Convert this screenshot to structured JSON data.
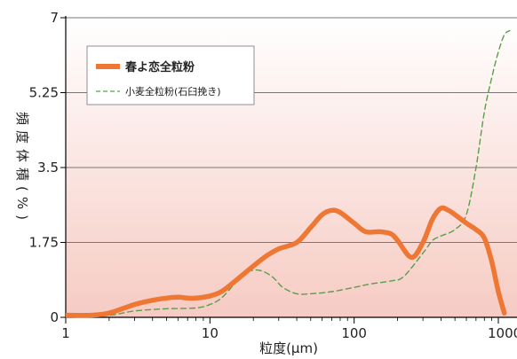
{
  "chart_data": {
    "type": "line",
    "ylabel": "頻度体積(%)",
    "xlabel": "粒度(μm)",
    "x_scale": "log",
    "xlim": [
      1,
      1000
    ],
    "ylim": [
      0,
      7
    ],
    "x_ticks": [
      "1",
      "10",
      "100",
      "1000"
    ],
    "y_ticks": [
      "0",
      "1.75",
      "3.5",
      "5.25",
      "7"
    ],
    "grid": "horizontal",
    "legend_position": "top-left",
    "series": [
      {
        "name": "春よ恋全粒粉",
        "style": "solid",
        "color": "#ee7733",
        "points": [
          [
            1,
            0.05
          ],
          [
            1.5,
            0.05
          ],
          [
            2,
            0.1
          ],
          [
            3,
            0.3
          ],
          [
            4,
            0.4
          ],
          [
            5,
            0.45
          ],
          [
            6,
            0.47
          ],
          [
            7,
            0.45
          ],
          [
            8,
            0.45
          ],
          [
            10,
            0.5
          ],
          [
            12,
            0.6
          ],
          [
            15,
            0.85
          ],
          [
            20,
            1.2
          ],
          [
            25,
            1.45
          ],
          [
            30,
            1.6
          ],
          [
            40,
            1.75
          ],
          [
            50,
            2.1
          ],
          [
            60,
            2.4
          ],
          [
            70,
            2.5
          ],
          [
            80,
            2.45
          ],
          [
            100,
            2.2
          ],
          [
            120,
            2.0
          ],
          [
            150,
            2.0
          ],
          [
            180,
            1.95
          ],
          [
            200,
            1.8
          ],
          [
            250,
            1.4
          ],
          [
            300,
            1.75
          ],
          [
            350,
            2.3
          ],
          [
            400,
            2.55
          ],
          [
            450,
            2.5
          ],
          [
            500,
            2.4
          ],
          [
            600,
            2.2
          ],
          [
            700,
            2.05
          ],
          [
            800,
            1.85
          ],
          [
            900,
            1.3
          ],
          [
            1000,
            0.6
          ],
          [
            1100,
            0.1
          ]
        ]
      },
      {
        "name": "小麦全粒粉(石臼挽き)",
        "style": "dashed",
        "color": "#5a9e4a",
        "points": [
          [
            1,
            0.02
          ],
          [
            2,
            0.05
          ],
          [
            3,
            0.15
          ],
          [
            5,
            0.2
          ],
          [
            8,
            0.22
          ],
          [
            10,
            0.3
          ],
          [
            12,
            0.45
          ],
          [
            15,
            0.8
          ],
          [
            18,
            1.05
          ],
          [
            22,
            1.1
          ],
          [
            27,
            0.95
          ],
          [
            32,
            0.7
          ],
          [
            40,
            0.55
          ],
          [
            50,
            0.55
          ],
          [
            70,
            0.6
          ],
          [
            100,
            0.7
          ],
          [
            130,
            0.78
          ],
          [
            180,
            0.85
          ],
          [
            220,
            0.95
          ],
          [
            300,
            1.5
          ],
          [
            350,
            1.8
          ],
          [
            400,
            1.9
          ],
          [
            500,
            2.05
          ],
          [
            600,
            2.4
          ],
          [
            700,
            3.5
          ],
          [
            800,
            4.8
          ],
          [
            900,
            5.6
          ],
          [
            1000,
            6.2
          ],
          [
            1100,
            6.6
          ],
          [
            1200,
            6.7
          ]
        ]
      }
    ]
  }
}
